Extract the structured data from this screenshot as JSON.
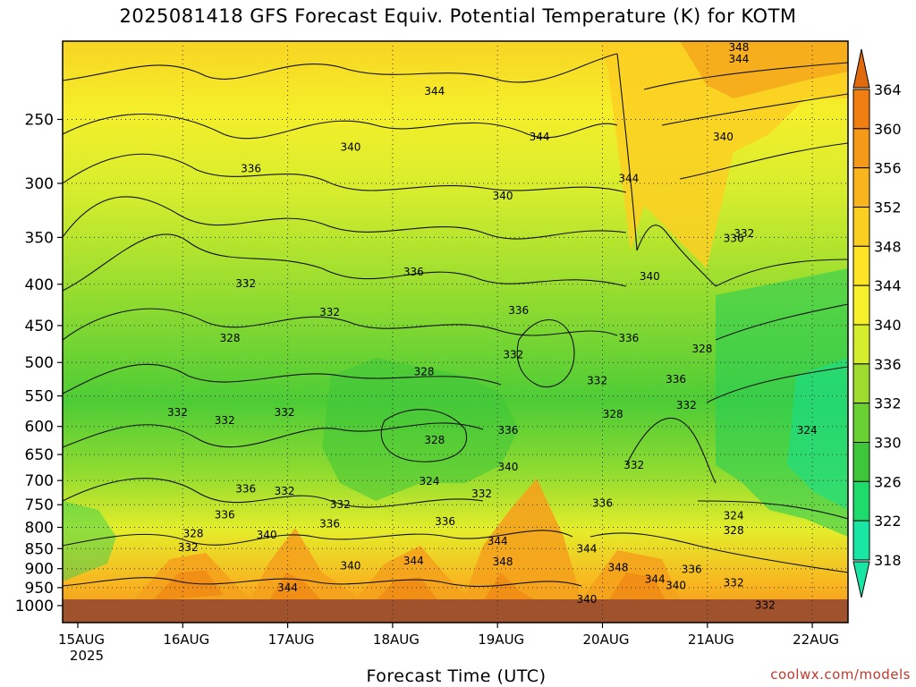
{
  "chart_data": {
    "type": "heatmap",
    "title": "2025081418 GFS Forecast Equiv. Potential Temperature (K) for KOTM",
    "xlabel": "Forecast Time (UTC)",
    "ylabel": "",
    "credit": "coolwx.com/models",
    "x_ticks": [
      "15AUG",
      "16AUG",
      "17AUG",
      "18AUG",
      "19AUG",
      "20AUG",
      "21AUG",
      "22AUG"
    ],
    "x_tick_sublabel": "2025",
    "y_ticks": [
      250,
      300,
      350,
      400,
      450,
      500,
      550,
      600,
      650,
      700,
      750,
      800,
      850,
      900,
      950,
      1000
    ],
    "y_scale": "log-pressure",
    "y_range_hPa": [
      1000,
      200
    ],
    "grid": true,
    "colorbar": {
      "units": "K",
      "labels": [
        364,
        360,
        356,
        352,
        348,
        344,
        340,
        336,
        332,
        330,
        326,
        322,
        318
      ],
      "colors": [
        "#e06a0c",
        "#f07e10",
        "#f59a18",
        "#f8b51e",
        "#fbcf22",
        "#fde425",
        "#f5f02a",
        "#d4ee2e",
        "#9edd30",
        "#6ad132",
        "#3ec63a",
        "#1edc6c",
        "#18e6a2"
      ]
    },
    "contour_labels": [
      {
        "t": 0.95,
        "p": 575,
        "v": "332"
      },
      {
        "t": 1.1,
        "p": 812,
        "v": "328"
      },
      {
        "t": 1.05,
        "p": 845,
        "v": "332"
      },
      {
        "t": 1.4,
        "p": 770,
        "v": "336"
      },
      {
        "t": 1.4,
        "p": 588,
        "v": "332"
      },
      {
        "t": 1.6,
        "p": 398,
        "v": "332"
      },
      {
        "t": 1.45,
        "p": 465,
        "v": "328"
      },
      {
        "t": 1.6,
        "p": 715,
        "v": "336"
      },
      {
        "t": 1.8,
        "p": 815,
        "v": "340"
      },
      {
        "t": 1.65,
        "p": 287,
        "v": "336"
      },
      {
        "t": 2.0,
        "p": 948,
        "v": "344"
      },
      {
        "t": 1.97,
        "p": 720,
        "v": "332"
      },
      {
        "t": 1.97,
        "p": 575,
        "v": "332"
      },
      {
        "t": 2.4,
        "p": 790,
        "v": "336"
      },
      {
        "t": 2.5,
        "p": 748,
        "v": "332"
      },
      {
        "t": 2.6,
        "p": 890,
        "v": "340"
      },
      {
        "t": 2.4,
        "p": 432,
        "v": "332"
      },
      {
        "t": 2.6,
        "p": 270,
        "v": "340"
      },
      {
        "t": 3.4,
        "p": 230,
        "v": "344"
      },
      {
        "t": 3.2,
        "p": 385,
        "v": "336"
      },
      {
        "t": 3.3,
        "p": 512,
        "v": "328"
      },
      {
        "t": 3.4,
        "p": 622,
        "v": "328"
      },
      {
        "t": 3.35,
        "p": 700,
        "v": "324"
      },
      {
        "t": 3.5,
        "p": 785,
        "v": "336"
      },
      {
        "t": 3.2,
        "p": 878,
        "v": "344"
      },
      {
        "t": 3.85,
        "p": 725,
        "v": "332"
      },
      {
        "t": 4.0,
        "p": 830,
        "v": "344"
      },
      {
        "t": 4.05,
        "p": 880,
        "v": "348"
      },
      {
        "t": 4.1,
        "p": 672,
        "v": "340"
      },
      {
        "t": 4.1,
        "p": 605,
        "v": "336"
      },
      {
        "t": 4.2,
        "p": 430,
        "v": "336"
      },
      {
        "t": 4.15,
        "p": 488,
        "v": "332"
      },
      {
        "t": 4.05,
        "p": 310,
        "v": "340"
      },
      {
        "t": 4.4,
        "p": 262,
        "v": "344"
      },
      {
        "t": 4.85,
        "p": 848,
        "v": "344"
      },
      {
        "t": 4.85,
        "p": 980,
        "v": "340"
      },
      {
        "t": 4.95,
        "p": 525,
        "v": "332"
      },
      {
        "t": 5.1,
        "p": 578,
        "v": "328"
      },
      {
        "t": 5.0,
        "p": 745,
        "v": "336"
      },
      {
        "t": 5.25,
        "p": 465,
        "v": "336"
      },
      {
        "t": 5.3,
        "p": 668,
        "v": "332"
      },
      {
        "t": 5.25,
        "p": 295,
        "v": "344"
      },
      {
        "t": 5.45,
        "p": 390,
        "v": "340"
      },
      {
        "t": 5.15,
        "p": 895,
        "v": "348"
      },
      {
        "t": 5.5,
        "p": 925,
        "v": "344"
      },
      {
        "t": 5.7,
        "p": 942,
        "v": "340"
      },
      {
        "t": 5.85,
        "p": 900,
        "v": "336"
      },
      {
        "t": 5.7,
        "p": 523,
        "v": "336"
      },
      {
        "t": 5.8,
        "p": 563,
        "v": "332"
      },
      {
        "t": 5.95,
        "p": 480,
        "v": "328"
      },
      {
        "t": 6.25,
        "p": 772,
        "v": "324"
      },
      {
        "t": 6.25,
        "p": 805,
        "v": "328"
      },
      {
        "t": 6.25,
        "p": 935,
        "v": "332"
      },
      {
        "t": 6.25,
        "p": 350,
        "v": "336"
      },
      {
        "t": 6.35,
        "p": 345,
        "v": "332"
      },
      {
        "t": 6.15,
        "p": 262,
        "v": "340"
      },
      {
        "t": 6.3,
        "p": 210,
        "v": "344"
      },
      {
        "t": 6.3,
        "p": 203,
        "v": "348"
      },
      {
        "t": 6.55,
        "p": 996,
        "v": "332"
      },
      {
        "t": 6.95,
        "p": 605,
        "v": "324"
      }
    ]
  }
}
